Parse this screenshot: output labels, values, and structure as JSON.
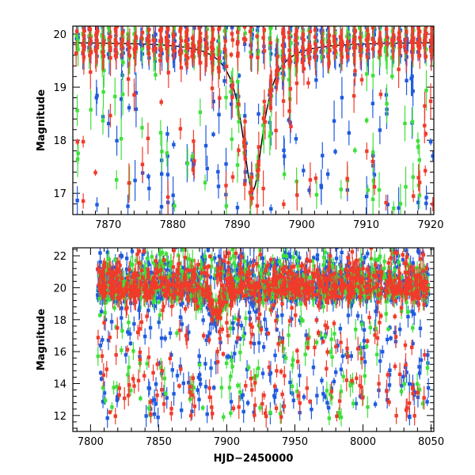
{
  "chart_data": [
    {
      "id": "top",
      "type": "scatter",
      "title": "",
      "xlabel": "",
      "ylabel": "Magnitude",
      "xlim": [
        7864.5,
        7920.5
      ],
      "ylim": [
        20.15,
        16.6
      ],
      "y_inverted": true,
      "xticks": [
        7870,
        7880,
        7890,
        7900,
        7910,
        7920
      ],
      "yticks": [
        17,
        18,
        19,
        20
      ],
      "grid": false,
      "legend": "none",
      "series": [
        {
          "color": "#1f5be0",
          "seed": 11,
          "count": 520
        },
        {
          "color": "#3ee03a",
          "seed": 23,
          "count": 360
        },
        {
          "color": "#f03b2b",
          "seed": 37,
          "count": 460
        }
      ],
      "model_curve": {
        "color": "#000000",
        "peak_x": 7892.4,
        "peak_mag": 17.05,
        "baseline_mag": 19.85,
        "width": 2.0
      },
      "error_bars": true
    },
    {
      "id": "bottom",
      "type": "scatter",
      "title": "",
      "xlabel": "HJD−2450000",
      "ylabel": "Magnitude",
      "xlim": [
        7787,
        8052
      ],
      "ylim": [
        22.5,
        11.0
      ],
      "y_inverted": true,
      "xticks": [
        7800,
        7850,
        7900,
        7950,
        8000,
        8050
      ],
      "yticks": [
        12,
        14,
        16,
        18,
        20,
        22
      ],
      "grid": false,
      "legend": "none",
      "series": [
        {
          "color": "#1f5be0",
          "seed": 51,
          "count": 1100
        },
        {
          "color": "#3ee03a",
          "seed": 67,
          "count": 700
        },
        {
          "color": "#f03b2b",
          "seed": 83,
          "count": 900
        }
      ],
      "error_bars": true
    }
  ]
}
